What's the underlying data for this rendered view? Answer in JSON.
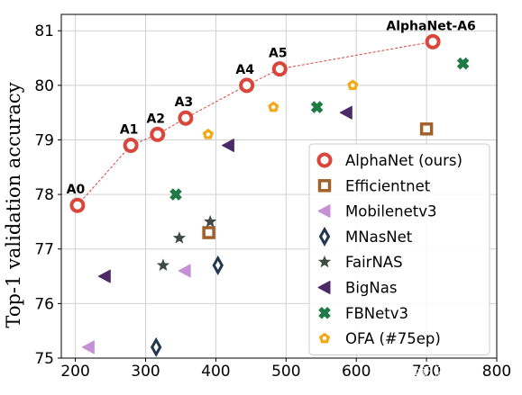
{
  "chart_data": {
    "type": "scatter",
    "title": "",
    "xlabel": "",
    "ylabel": "Top-1 validation accuracy",
    "xlim": [
      180,
      800
    ],
    "ylim": [
      75,
      81.3
    ],
    "xticks": [
      200,
      300,
      400,
      500,
      600,
      700,
      800
    ],
    "yticks": [
      75,
      76,
      77,
      78,
      79,
      80,
      81
    ],
    "grid": true,
    "legend_position": "lower-right",
    "series": [
      {
        "name": "AlphaNet (ours)",
        "marker": "ring",
        "color": "#d9463c",
        "connect": true,
        "points": [
          {
            "x": 203,
            "y": 77.8,
            "label": "A0"
          },
          {
            "x": 279,
            "y": 78.9,
            "label": "A1"
          },
          {
            "x": 317,
            "y": 79.1,
            "label": "A2"
          },
          {
            "x": 357,
            "y": 79.4,
            "label": "A3"
          },
          {
            "x": 444,
            "y": 80.0,
            "label": "A4"
          },
          {
            "x": 491,
            "y": 80.3,
            "label": "A5"
          },
          {
            "x": 709,
            "y": 80.8,
            "label": "AlphaNet-A6"
          }
        ]
      },
      {
        "name": "Efficientnet",
        "marker": "square",
        "color": "#a0622a",
        "points": [
          {
            "x": 390,
            "y": 77.3
          },
          {
            "x": 700,
            "y": 79.2
          }
        ]
      },
      {
        "name": "Mobilenetv3",
        "marker": "triangle-left",
        "color": "#c591d4",
        "points": [
          {
            "x": 219,
            "y": 75.2
          },
          {
            "x": 356,
            "y": 76.6
          }
        ]
      },
      {
        "name": "MNasNet",
        "marker": "thin-diamond",
        "color": "#23374d",
        "points": [
          {
            "x": 315,
            "y": 75.2
          },
          {
            "x": 403,
            "y": 76.7
          }
        ]
      },
      {
        "name": "FairNAS",
        "marker": "star",
        "color": "#3e4b45",
        "points": [
          {
            "x": 325,
            "y": 76.7
          },
          {
            "x": 348,
            "y": 77.2
          },
          {
            "x": 392,
            "y": 77.5
          }
        ]
      },
      {
        "name": "BigNas",
        "marker": "triangle-left",
        "color": "#4b2a66",
        "points": [
          {
            "x": 242,
            "y": 76.5
          },
          {
            "x": 418,
            "y": 78.9
          },
          {
            "x": 586,
            "y": 79.5
          }
        ]
      },
      {
        "name": "FBNetv3",
        "marker": "plus-cross",
        "color": "#1f7a45",
        "points": [
          {
            "x": 343,
            "y": 78.0
          },
          {
            "x": 544,
            "y": 79.6
          },
          {
            "x": 752,
            "y": 80.4
          }
        ]
      },
      {
        "name": "OFA (#75ep)",
        "marker": "pentagon",
        "color": "#f2a91a",
        "points": [
          {
            "x": 389,
            "y": 79.1
          },
          {
            "x": 482,
            "y": 79.6
          },
          {
            "x": 595,
            "y": 80.0
          }
        ]
      }
    ]
  },
  "watermark": "知乎 @记忆的轮"
}
